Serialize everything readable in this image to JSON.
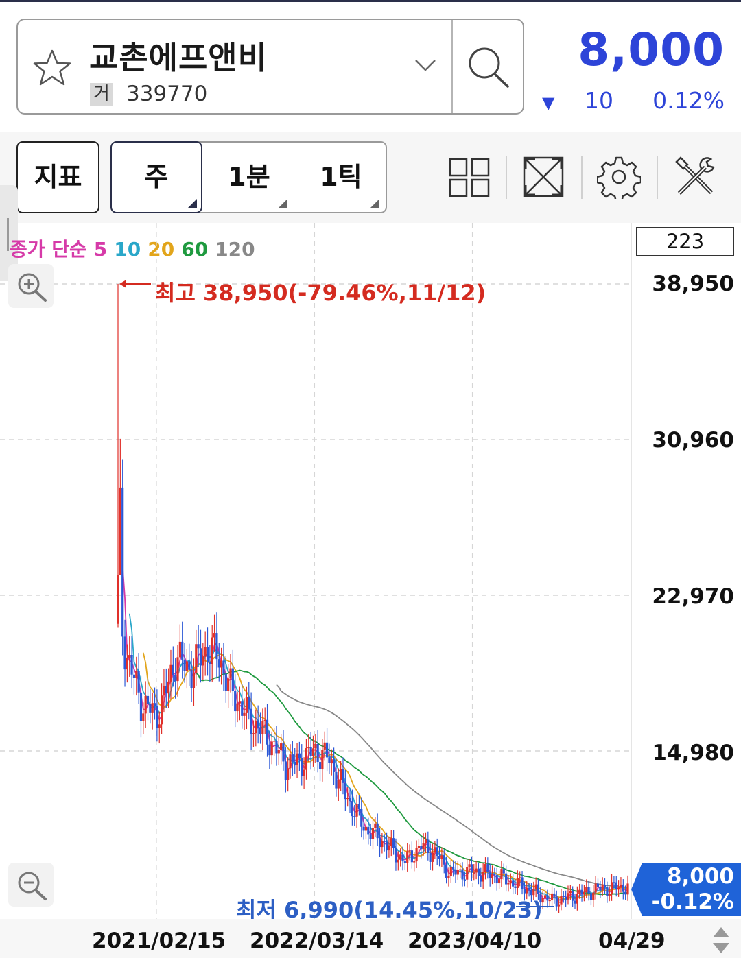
{
  "header": {
    "stock_name": "교촌에프앤비",
    "market_badge": "거",
    "stock_code": "339770",
    "price": "8,000",
    "change_arrow": "▼",
    "change_value": "10",
    "change_pct": "0.12%",
    "price_color": "#2d44d8"
  },
  "toolbar": {
    "indicator_label": "지표",
    "periods": [
      "주",
      "1분",
      "1틱"
    ],
    "selected_period": "주",
    "icons": [
      "layout-grid-icon",
      "fullscreen-icon",
      "settings-gear-icon",
      "tools-icon"
    ]
  },
  "legend": {
    "prefix": "종가 단순",
    "items": [
      {
        "label": "5",
        "color": "#d63aa8"
      },
      {
        "label": "10",
        "color": "#2aa7c9"
      },
      {
        "label": "20",
        "color": "#e2a51b"
      },
      {
        "label": "60",
        "color": "#1f9a3f"
      },
      {
        "label": "120",
        "color": "#888888"
      }
    ]
  },
  "candle_count": "223",
  "chart_data": {
    "type": "candlestick",
    "y_tick_labels": [
      "38,950",
      "30,960",
      "22,970",
      "14,980"
    ],
    "ylim": [
      6990,
      38950
    ],
    "x_tick_labels": [
      "2021/02/15",
      "2022/03/14",
      "2023/04/10",
      "04/29"
    ],
    "high_annotation": "최고 38,950(-79.46%,11/12)",
    "low_annotation": "최저 6,990(14.45%,10/23)",
    "current_price_tag": "8,000",
    "current_change_tag": "-0.12%",
    "close_series": [
      {
        "x": "2020/11/12",
        "close": 24000
      },
      {
        "x": "2020/11/26",
        "close": 20500
      },
      {
        "x": "2020/12/17",
        "close": 19000
      },
      {
        "x": "2021/01/07",
        "close": 17500
      },
      {
        "x": "2021/02/15",
        "close": 16800
      },
      {
        "x": "2021/03/08",
        "close": 17800
      },
      {
        "x": "2021/04/05",
        "close": 19800
      },
      {
        "x": "2021/05/10",
        "close": 19100
      },
      {
        "x": "2021/06/21",
        "close": 20200
      },
      {
        "x": "2021/07/19",
        "close": 19900
      },
      {
        "x": "2021/08/16",
        "close": 18200
      },
      {
        "x": "2021/10/04",
        "close": 16600
      },
      {
        "x": "2021/11/15",
        "close": 15800
      },
      {
        "x": "2022/01/03",
        "close": 14300
      },
      {
        "x": "2022/02/07",
        "close": 14400
      },
      {
        "x": "2022/03/14",
        "close": 15000
      },
      {
        "x": "2022/04/18",
        "close": 14600
      },
      {
        "x": "2022/06/13",
        "close": 12200
      },
      {
        "x": "2022/07/18",
        "close": 11000
      },
      {
        "x": "2022/08/22",
        "close": 10500
      },
      {
        "x": "2022/10/24",
        "close": 9300
      },
      {
        "x": "2022/12/05",
        "close": 10100
      },
      {
        "x": "2023/01/09",
        "close": 9700
      },
      {
        "x": "2023/02/13",
        "close": 8700
      },
      {
        "x": "2023/04/10",
        "close": 8800
      },
      {
        "x": "2023/06/05",
        "close": 8600
      },
      {
        "x": "2023/08/14",
        "close": 8000
      },
      {
        "x": "2023/10/23",
        "close": 7300
      },
      {
        "x": "2023/12/11",
        "close": 7500
      },
      {
        "x": "2024/02/19",
        "close": 7900
      },
      {
        "x": "2024/04/29",
        "close": 8000
      }
    ]
  }
}
